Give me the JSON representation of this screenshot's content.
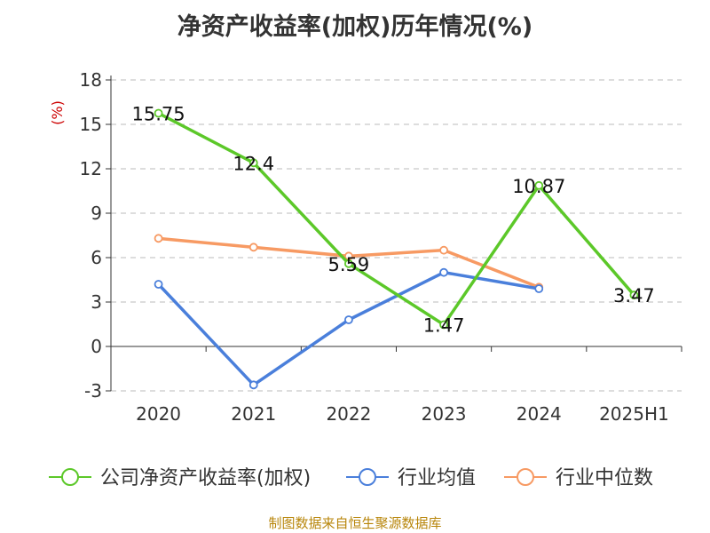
{
  "title": "净资产收益率(加权)历年情况(%)",
  "source": "制图数据来自恒生聚源数据库",
  "colors": {
    "company": "#5cc829",
    "avg": "#4a7fdb",
    "median": "#f79a63",
    "unit": "#cc0000",
    "axis": "#333333",
    "grid": "#bbbbbb"
  },
  "chart_data": {
    "type": "line",
    "title": "净资产收益率(加权)历年情况(%)",
    "ylabel": "(%)",
    "categories": [
      "2020",
      "2021",
      "2022",
      "2023",
      "2024",
      "2025H1"
    ],
    "ylim": [
      -3,
      18
    ],
    "yticks": [
      -3,
      0,
      3,
      6,
      9,
      12,
      15,
      18
    ],
    "grid": true,
    "legend_position": "bottom",
    "series": [
      {
        "name": "公司净资产收益率(加权)",
        "key": "company",
        "values": [
          15.75,
          12.4,
          5.59,
          1.47,
          10.87,
          3.47
        ],
        "labels": [
          "15.75",
          "12.4",
          "5.59",
          "1.47",
          "10.87",
          "3.47"
        ]
      },
      {
        "name": "行业均值",
        "key": "avg",
        "values": [
          4.2,
          -2.6,
          1.8,
          5.0,
          3.9,
          null
        ]
      },
      {
        "name": "行业中位数",
        "key": "median",
        "values": [
          7.3,
          6.7,
          6.1,
          6.5,
          4.0,
          null
        ]
      }
    ]
  }
}
